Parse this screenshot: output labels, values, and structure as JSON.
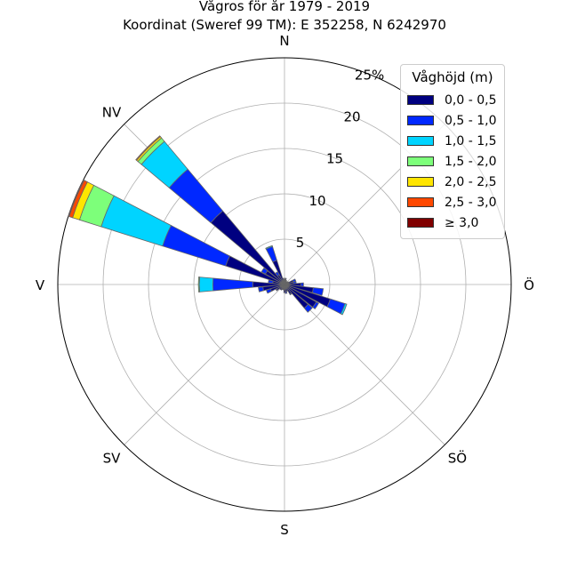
{
  "chart_data": {
    "type": "windrose",
    "title": "Vågros för år 1979 - 2019",
    "subtitle": "Koordinat (Sweref 99 TM): E 352258, N 6242970",
    "radial_unit": "%",
    "radial_ticks": [
      "5",
      "10",
      "15",
      "20",
      "25%"
    ],
    "radial_tick_values": [
      5,
      10,
      15,
      20,
      25
    ],
    "rmax": 25,
    "direction_labels": [
      {
        "label": "N",
        "angle": 0
      },
      {
        "label": "NV",
        "angle": 315
      },
      {
        "label": "V",
        "angle": 270
      },
      {
        "label": "SV",
        "angle": 225
      },
      {
        "label": "S",
        "angle": 180
      },
      {
        "label": "SÖ",
        "angle": 135
      },
      {
        "label": "Ö",
        "angle": 90
      }
    ],
    "legend_title": "Våghöjd (m)",
    "legend_placement": "top-right",
    "grid": true,
    "series": [
      {
        "name": "0,0 - 0,5",
        "color": "#000080"
      },
      {
        "name": "0,5 - 1,0",
        "color": "#0028ff"
      },
      {
        "name": "1,0 - 1,5",
        "color": "#00d4ff"
      },
      {
        "name": "1,5 - 2,0",
        "color": "#7dff7a"
      },
      {
        "name": "2,0 - 2,5",
        "color": "#ffe500"
      },
      {
        "name": "2,5 - 3,0",
        "color": "#ff4800"
      },
      {
        "name": "≥ 3,0",
        "color": "#800000"
      }
    ],
    "sectors": [
      {
        "direction": 0,
        "cumulative": [
          0.5,
          0.6
        ]
      },
      {
        "direction": 11.25,
        "cumulative": [
          0.6,
          0.7
        ]
      },
      {
        "direction": 22.5,
        "cumulative": [
          0.5
        ]
      },
      {
        "direction": 33.75,
        "cumulative": [
          0.4
        ]
      },
      {
        "direction": 45,
        "cumulative": [
          0.4
        ]
      },
      {
        "direction": 56.25,
        "cumulative": [
          0.5
        ]
      },
      {
        "direction": 67.5,
        "cumulative": [
          1.0,
          1.3
        ]
      },
      {
        "direction": 78.75,
        "cumulative": [
          1.0,
          1.3
        ]
      },
      {
        "direction": 90,
        "cumulative": [
          1.8,
          2.1
        ]
      },
      {
        "direction": 101.25,
        "cumulative": [
          3.2,
          4.3
        ]
      },
      {
        "direction": 112.5,
        "cumulative": [
          5.3,
          7.0,
          7.2
        ]
      },
      {
        "direction": 123.75,
        "cumulative": [
          4.0,
          4.3
        ]
      },
      {
        "direction": 135,
        "cumulative": [
          3.4,
          4.0
        ]
      },
      {
        "direction": 146.25,
        "cumulative": [
          1.2,
          1.3
        ]
      },
      {
        "direction": 157.5,
        "cumulative": [
          0.8
        ]
      },
      {
        "direction": 168.75,
        "cumulative": [
          0.8,
          1.0
        ]
      },
      {
        "direction": 180,
        "cumulative": [
          0.9
        ]
      },
      {
        "direction": 191.25,
        "cumulative": [
          0.6
        ]
      },
      {
        "direction": 202.5,
        "cumulative": [
          0.6
        ]
      },
      {
        "direction": 213.75,
        "cumulative": [
          0.7
        ]
      },
      {
        "direction": 225,
        "cumulative": [
          0.7
        ]
      },
      {
        "direction": 236.25,
        "cumulative": [
          1.0,
          1.1
        ]
      },
      {
        "direction": 247.5,
        "cumulative": [
          1.6,
          2.1
        ]
      },
      {
        "direction": 258.75,
        "cumulative": [
          2.4,
          2.9
        ]
      },
      {
        "direction": 270,
        "cumulative": [
          3.5,
          7.9,
          9.4,
          9.5
        ]
      },
      {
        "direction": 281.25,
        "cumulative": [
          1.3,
          1.8
        ]
      },
      {
        "direction": 292.5,
        "cumulative": [
          6.8,
          14.1,
          21.2,
          23.7,
          24.5,
          24.9,
          25.0
        ]
      },
      {
        "direction": 303.75,
        "cumulative": [
          2.4,
          2.9
        ]
      },
      {
        "direction": 315,
        "cumulative": [
          10.6,
          16.6,
          20.6,
          21.1,
          21.3,
          21.4
        ]
      },
      {
        "direction": 326.25,
        "cumulative": [
          1.2,
          1.6
        ]
      },
      {
        "direction": 337.5,
        "cumulative": [
          2.8,
          4.4,
          4.5
        ]
      },
      {
        "direction": 348.75,
        "cumulative": [
          0.6,
          0.7
        ]
      }
    ]
  }
}
